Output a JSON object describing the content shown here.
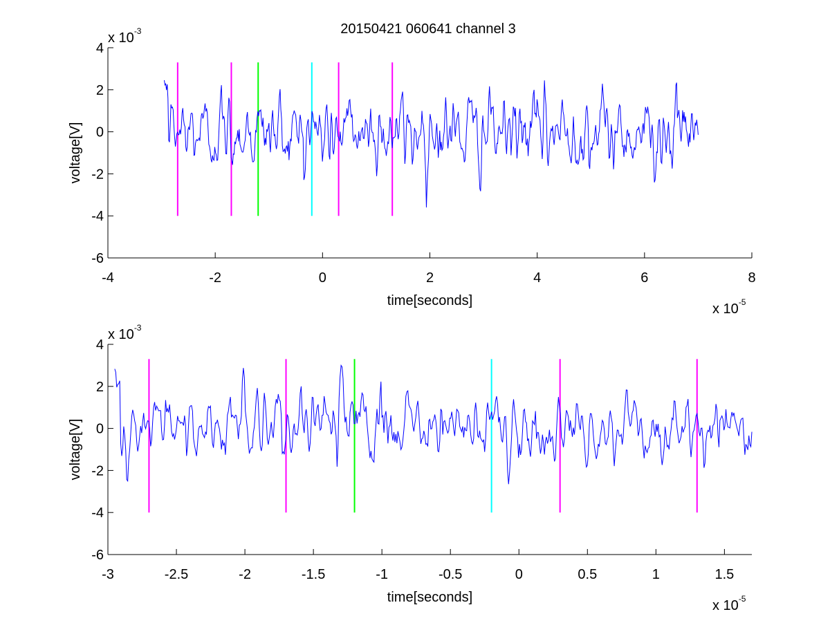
{
  "figure_title": "20150421 060641 channel 3",
  "colors": {
    "signal": "#0000ff",
    "marker_magenta": "#ff00ff",
    "marker_green": "#00ff00",
    "marker_cyan": "#00ffff",
    "axes": "#000000"
  },
  "chart_data": [
    {
      "type": "line",
      "title": "20150421 060641 channel 3",
      "xlabel": "time[seconds]",
      "ylabel": "voltage[V]",
      "x_multiplier_label": "x 10",
      "x_multiplier_exp": "-5",
      "y_multiplier_label": "x 10",
      "y_multiplier_exp": "-3",
      "xlim": [
        -4,
        8
      ],
      "ylim": [
        -6,
        4
      ],
      "xticks": [
        -4,
        -2,
        0,
        2,
        4,
        6,
        8
      ],
      "xtick_labels": [
        "-4",
        "-2",
        "0",
        "2",
        "4",
        "6",
        "8"
      ],
      "yticks": [
        -6,
        -4,
        -2,
        0,
        2,
        4
      ],
      "ytick_labels": [
        "-6",
        "-4",
        "-2",
        "0",
        "2",
        "4"
      ],
      "grid": false,
      "series": [
        {
          "x_range": [
            -2.95,
            7.0
          ],
          "samples": 720,
          "amplitude_scale": 1.0
        }
      ],
      "markers": [
        {
          "x": -2.7,
          "y_range": [
            -4,
            3.3
          ],
          "color": "magenta"
        },
        {
          "x": -1.7,
          "y_range": [
            -4,
            3.3
          ],
          "color": "magenta"
        },
        {
          "x": -1.2,
          "y_range": [
            -4,
            3.3
          ],
          "color": "green"
        },
        {
          "x": -0.2,
          "y_range": [
            -4,
            3.3
          ],
          "color": "cyan"
        },
        {
          "x": 0.3,
          "y_range": [
            -4,
            3.3
          ],
          "color": "magenta"
        },
        {
          "x": 1.3,
          "y_range": [
            -4,
            3.3
          ],
          "color": "magenta"
        }
      ]
    },
    {
      "type": "line",
      "xlabel": "time[seconds]",
      "ylabel": "voltage[V]",
      "x_multiplier_label": "x 10",
      "x_multiplier_exp": "-5",
      "y_multiplier_label": "x 10",
      "y_multiplier_exp": "-3",
      "xlim": [
        -3.0,
        1.7
      ],
      "ylim": [
        -6,
        4
      ],
      "xticks": [
        -3,
        -2.5,
        -2,
        -1.5,
        -1,
        -0.5,
        0,
        0.5,
        1,
        1.5
      ],
      "xtick_labels": [
        "-3",
        "-2.5",
        "-2",
        "-1.5",
        "-1",
        "-0.5",
        "0",
        "0.5",
        "1",
        "1.5"
      ],
      "yticks": [
        -6,
        -4,
        -2,
        0,
        2,
        4
      ],
      "ytick_labels": [
        "-6",
        "-4",
        "-2",
        "0",
        "2",
        "4"
      ],
      "grid": false,
      "series": [
        {
          "x_range": [
            -2.95,
            1.7
          ],
          "samples": 640,
          "amplitude_scale": 1.0
        }
      ],
      "markers": [
        {
          "x": -2.7,
          "y_range": [
            -4,
            3.3
          ],
          "color": "magenta"
        },
        {
          "x": -1.7,
          "y_range": [
            -4,
            3.3
          ],
          "color": "magenta"
        },
        {
          "x": -1.2,
          "y_range": [
            -4,
            3.3
          ],
          "color": "green"
        },
        {
          "x": -0.2,
          "y_range": [
            -4,
            3.3
          ],
          "color": "cyan"
        },
        {
          "x": 0.3,
          "y_range": [
            -4,
            3.3
          ],
          "color": "magenta"
        },
        {
          "x": 1.3,
          "y_range": [
            -4,
            3.3
          ],
          "color": "magenta"
        }
      ]
    }
  ]
}
